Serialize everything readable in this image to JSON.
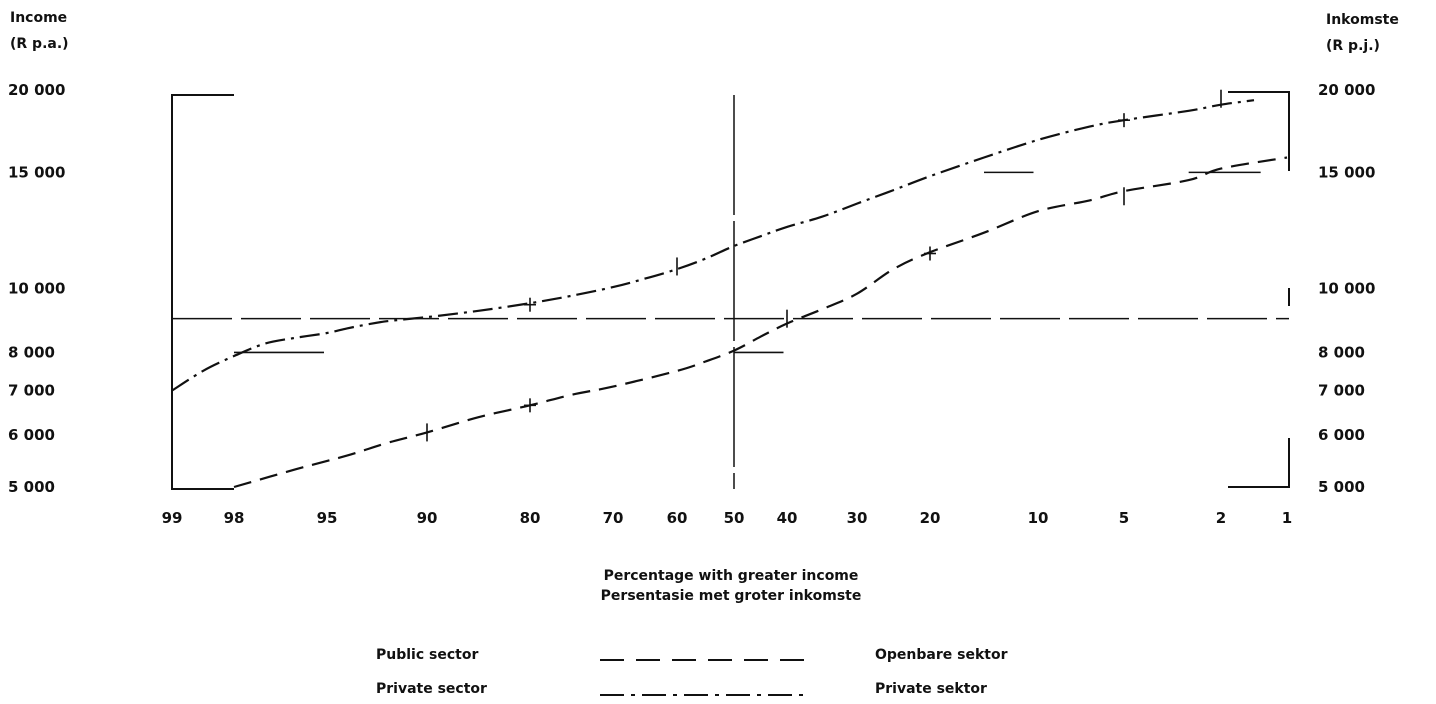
{
  "chart_data": {
    "type": "line",
    "y_axis_scale": "log",
    "x_axis_scale": "probability",
    "grid": false,
    "legend_placement": "bottom",
    "left_axis_title_lines": [
      "Income",
      "(R  p.a.)"
    ],
    "right_axis_title_lines": [
      "Inkomste",
      "(R  p.j.)"
    ],
    "xlabel_lines": [
      "Percentage with greater income",
      "Persentasie met groter inkomste"
    ],
    "x_ticks": [
      99,
      98,
      95,
      90,
      80,
      70,
      60,
      50,
      40,
      30,
      20,
      10,
      5,
      2,
      1
    ],
    "x_tick_labels": [
      "99",
      "98",
      "95",
      "90",
      "80",
      "70",
      "60",
      "50",
      "40",
      "30",
      "20",
      "10",
      "5",
      "2",
      "1"
    ],
    "y_ticks": [
      5000,
      6000,
      7000,
      8000,
      10000,
      15000,
      20000
    ],
    "y_tick_labels": [
      "5 000",
      "6 000",
      "7 000",
      "8 000",
      "10 000",
      "15 000",
      "20 000"
    ],
    "ylim": [
      5000,
      20000
    ],
    "xlim": [
      99,
      1
    ],
    "reference_lines": {
      "median_x": 50,
      "horizontal_y": 9000
    },
    "series": [
      {
        "name": "Public sector",
        "name_alt": "Openbare sektor",
        "style": "dashed",
        "x": [
          98,
          96,
          94,
          92,
          90,
          85,
          80,
          75,
          70,
          60,
          55,
          50,
          45,
          40,
          35,
          30,
          25,
          20,
          15,
          10,
          7,
          5,
          3,
          2,
          1
        ],
        "y": [
          5000,
          5320,
          5580,
          5830,
          6050,
          6380,
          6650,
          6900,
          7100,
          7500,
          7750,
          8050,
          8450,
          8850,
          9300,
          9820,
          10700,
          11350,
          12150,
          13100,
          13600,
          14050,
          14600,
          15200,
          15800
        ]
      },
      {
        "name": "Private sector",
        "name_alt": "Private sektor",
        "style": "dash-dot",
        "x": [
          99,
          98.5,
          98,
          97,
          96,
          95,
          94,
          93,
          92,
          90,
          85,
          80,
          75,
          70,
          65,
          60,
          55,
          50,
          45,
          40,
          35,
          30,
          25,
          20,
          15,
          10,
          7,
          5,
          3,
          2,
          1.5
        ],
        "y": [
          7000,
          7500,
          7900,
          8250,
          8420,
          8560,
          8700,
          8820,
          8920,
          9050,
          9250,
          9500,
          9750,
          10050,
          10350,
          10700,
          11100,
          11600,
          12000,
          12400,
          12850,
          13450,
          14100,
          14800,
          15800,
          16800,
          17600,
          18000,
          18600,
          19000,
          19300
        ]
      }
    ],
    "markers": [
      {
        "type": "tick-h",
        "x": 98,
        "y": 8000
      },
      {
        "type": "tick-h",
        "x": 50,
        "y": 8000
      },
      {
        "type": "tick-h",
        "x": 15,
        "y": 15000
      },
      {
        "type": "tick-h",
        "x": 3,
        "y": 15000
      },
      {
        "type": "tick-v",
        "x": 90,
        "y": 6050
      },
      {
        "type": "tick-v",
        "x": 60,
        "y": 10800
      },
      {
        "type": "tick-v",
        "x": 40,
        "y": 9000
      },
      {
        "type": "tick-v",
        "x": 5,
        "y": 13800
      },
      {
        "type": "tick-v",
        "x": 2,
        "y": 19400
      },
      {
        "type": "cross",
        "x": 80,
        "y": 9450
      },
      {
        "type": "cross",
        "x": 80,
        "y": 6650
      },
      {
        "type": "cross",
        "x": 20,
        "y": 11300
      },
      {
        "type": "cross",
        "x": 5,
        "y": 18000
      }
    ]
  },
  "legend": {
    "items": [
      {
        "label": "Public sector",
        "label_alt": "Openbare sektor",
        "style": "dashed"
      },
      {
        "label": "Private sector",
        "label_alt": "Private sektor",
        "style": "dash-dot"
      }
    ]
  }
}
